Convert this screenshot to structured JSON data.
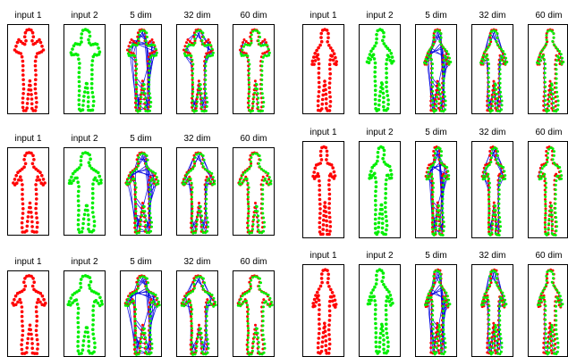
{
  "figure": {
    "groups": [
      {
        "id": "left-top",
        "labels": [
          "input 1",
          "input 2",
          "5 dim",
          "32 dim",
          "60 dim"
        ]
      },
      {
        "id": "right-top",
        "labels": [
          "input 1",
          "input 2",
          "5 dim",
          "32 dim",
          "60 dim"
        ]
      },
      {
        "id": "left-mid",
        "labels": [
          "input 1",
          "input 2",
          "5 dim",
          "32 dim",
          "60 dim"
        ]
      },
      {
        "id": "right-mid",
        "labels": [
          "input 1",
          "input 2",
          "5 dim",
          "32 dim",
          "60 dim"
        ]
      },
      {
        "id": "left-bottom",
        "labels": [
          "input 1",
          "input 2",
          "5 dim",
          "32 dim",
          "60 dim"
        ]
      },
      {
        "id": "right-bottom",
        "labels": [
          "input 1",
          "input 2",
          "5 dim",
          "32 dim",
          "60 dim"
        ]
      }
    ],
    "colors": {
      "input1": "#ff0000",
      "input2": "#00ee00",
      "match_line": "#0000dd",
      "border": "#000000"
    }
  }
}
